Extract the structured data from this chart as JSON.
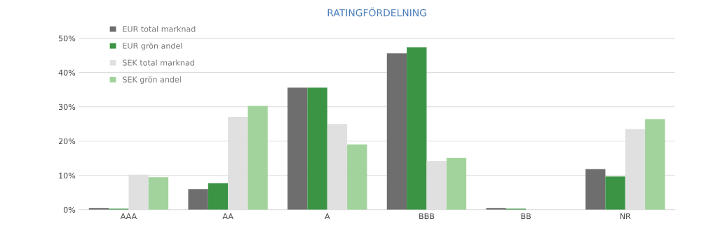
{
  "chart_data": {
    "type": "bar",
    "title": "RATINGFÖRDELNING",
    "categories": [
      "AAA",
      "AA",
      "A",
      "BBB",
      "BB",
      "NR"
    ],
    "series": [
      {
        "name": "EUR total marknad",
        "color": "#6e6e6e",
        "values": [
          0.5,
          6.0,
          35.6,
          45.6,
          0.5,
          11.8
        ]
      },
      {
        "name": "EUR grön andel",
        "color": "#3a9444",
        "values": [
          0.3,
          7.7,
          35.6,
          47.4,
          0.3,
          9.7
        ]
      },
      {
        "name": "SEK total marknad",
        "color": "#e0e0e0",
        "values": [
          10.2,
          27.1,
          25.0,
          14.2,
          null,
          23.5
        ]
      },
      {
        "name": "SEK grön andel",
        "color": "#a2d39c",
        "values": [
          9.5,
          30.3,
          19.0,
          15.1,
          null,
          26.4
        ]
      }
    ],
    "ylim": [
      0,
      53
    ],
    "yticks": [
      {
        "value": 0,
        "label": "0%"
      },
      {
        "value": 10,
        "label": "10%"
      },
      {
        "value": 20,
        "label": "20%"
      },
      {
        "value": 30,
        "label": "30%"
      },
      {
        "value": 40,
        "label": "40%"
      },
      {
        "value": 50,
        "label": "50%"
      }
    ],
    "grid": "y",
    "legend": "top left"
  }
}
